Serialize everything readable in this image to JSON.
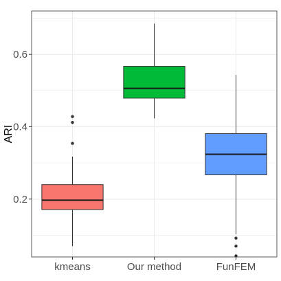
{
  "chart_data": {
    "type": "box",
    "xlabel": "",
    "ylabel": "ARI",
    "ylim": [
      0.04,
      0.72
    ],
    "yticks": [
      0.2,
      0.4,
      0.6
    ],
    "ytick_labels": [
      "0.2",
      "0.4",
      "0.6"
    ],
    "grid": true,
    "legend": "none",
    "categories": [
      "kmeans",
      "Our method",
      "FunFEM"
    ],
    "boxes": [
      {
        "category": "kmeans",
        "color": "#F8766D",
        "whisker_low": 0.07,
        "q1": 0.171,
        "median": 0.197,
        "q3": 0.24,
        "whisker_high": 0.317,
        "outliers": [
          0.428,
          0.412,
          0.354
        ]
      },
      {
        "category": "Our method",
        "color": "#00BA38",
        "whisker_low": 0.423,
        "q1": 0.479,
        "median": 0.506,
        "q3": 0.567,
        "whisker_high": 0.685,
        "outliers": []
      },
      {
        "category": "FunFEM",
        "color": "#619CFF",
        "whisker_low": 0.103,
        "q1": 0.267,
        "median": 0.324,
        "q3": 0.381,
        "whisker_high": 0.543,
        "outliers": [
          0.092,
          0.07,
          0.043
        ]
      }
    ]
  }
}
